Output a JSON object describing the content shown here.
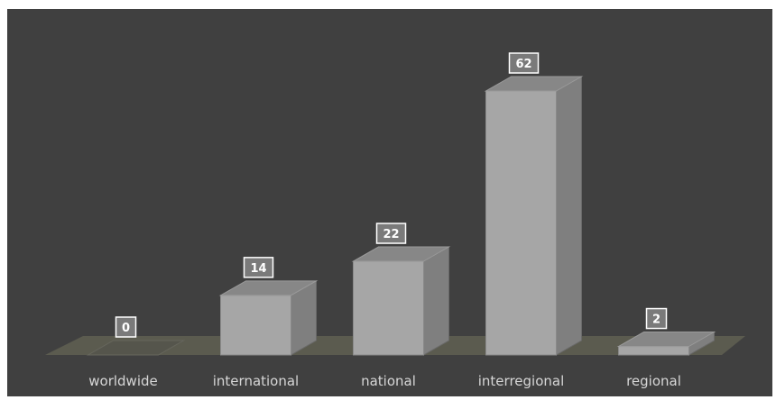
{
  "chart_data": {
    "type": "bar",
    "style": "3d-column",
    "categories": [
      "worldwide",
      "international",
      "national",
      "interregional",
      "regional"
    ],
    "values": [
      0,
      14,
      22,
      62,
      2
    ],
    "ylim": [
      0,
      62
    ],
    "grid": false,
    "legend": "none",
    "data_labels": true
  },
  "colors": {
    "background": "#404040",
    "frame": "#ffffff",
    "floor": "#5b5b4f",
    "bar_front": "#a6a6a6",
    "bar_side": "#7f7f7f",
    "bar_top": "#878787",
    "label_box": "#7a7a7a",
    "text": "#d6d6d6"
  }
}
